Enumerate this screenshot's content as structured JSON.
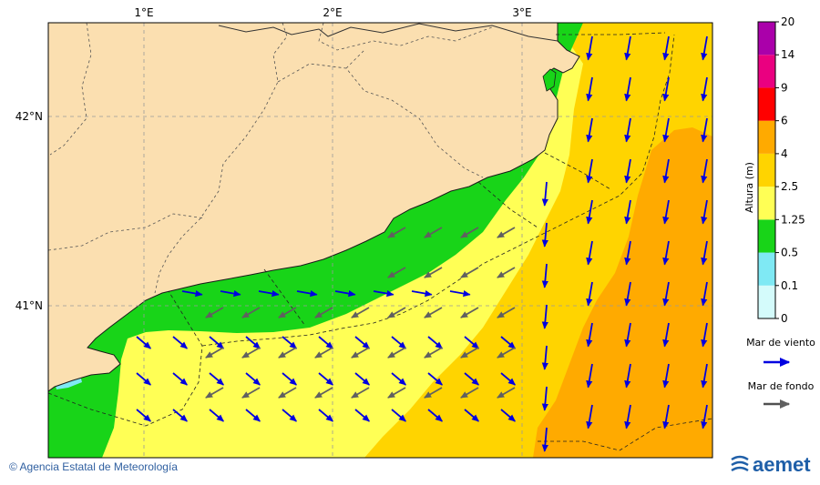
{
  "map": {
    "lon_labels": [
      "1°E",
      "2°E",
      "3°E"
    ],
    "lat_labels": [
      "42°N",
      "41°N"
    ],
    "lon_values": [
      1,
      2,
      3
    ],
    "lat_values": [
      42,
      41
    ],
    "lon_range": [
      0.5,
      4.05
    ],
    "lat_range": [
      40.2,
      42.5
    ]
  },
  "colorbar": {
    "title": "Altura (m)",
    "ticks": [
      "0",
      "0.1",
      "0.5",
      "1.25",
      "2.5",
      "4",
      "6",
      "9",
      "14",
      "20"
    ],
    "colors": [
      "#d4fbfb",
      "#7fe9f4",
      "#18d418",
      "#ffff55",
      "#ffd400",
      "#ffaa00",
      "#ff0000",
      "#ea0080",
      "#aa00aa"
    ]
  },
  "legend": {
    "wind_sea_label": "Mar de viento",
    "wind_sea_color": "#0000e0",
    "swell_label": "Mar de fondo",
    "swell_color": "#505050"
  },
  "colors": {
    "land": "#fbdfb0",
    "sea_low": "#ffff55",
    "sea_mid": "#ffd400",
    "sea_high": "#ffaa00",
    "coast_band": "#18d418"
  },
  "footer": {
    "credit": "© Agencia Estatal de Meteorología",
    "logo": "aemet",
    "logo_icon": "aemet-swirl-icon"
  }
}
